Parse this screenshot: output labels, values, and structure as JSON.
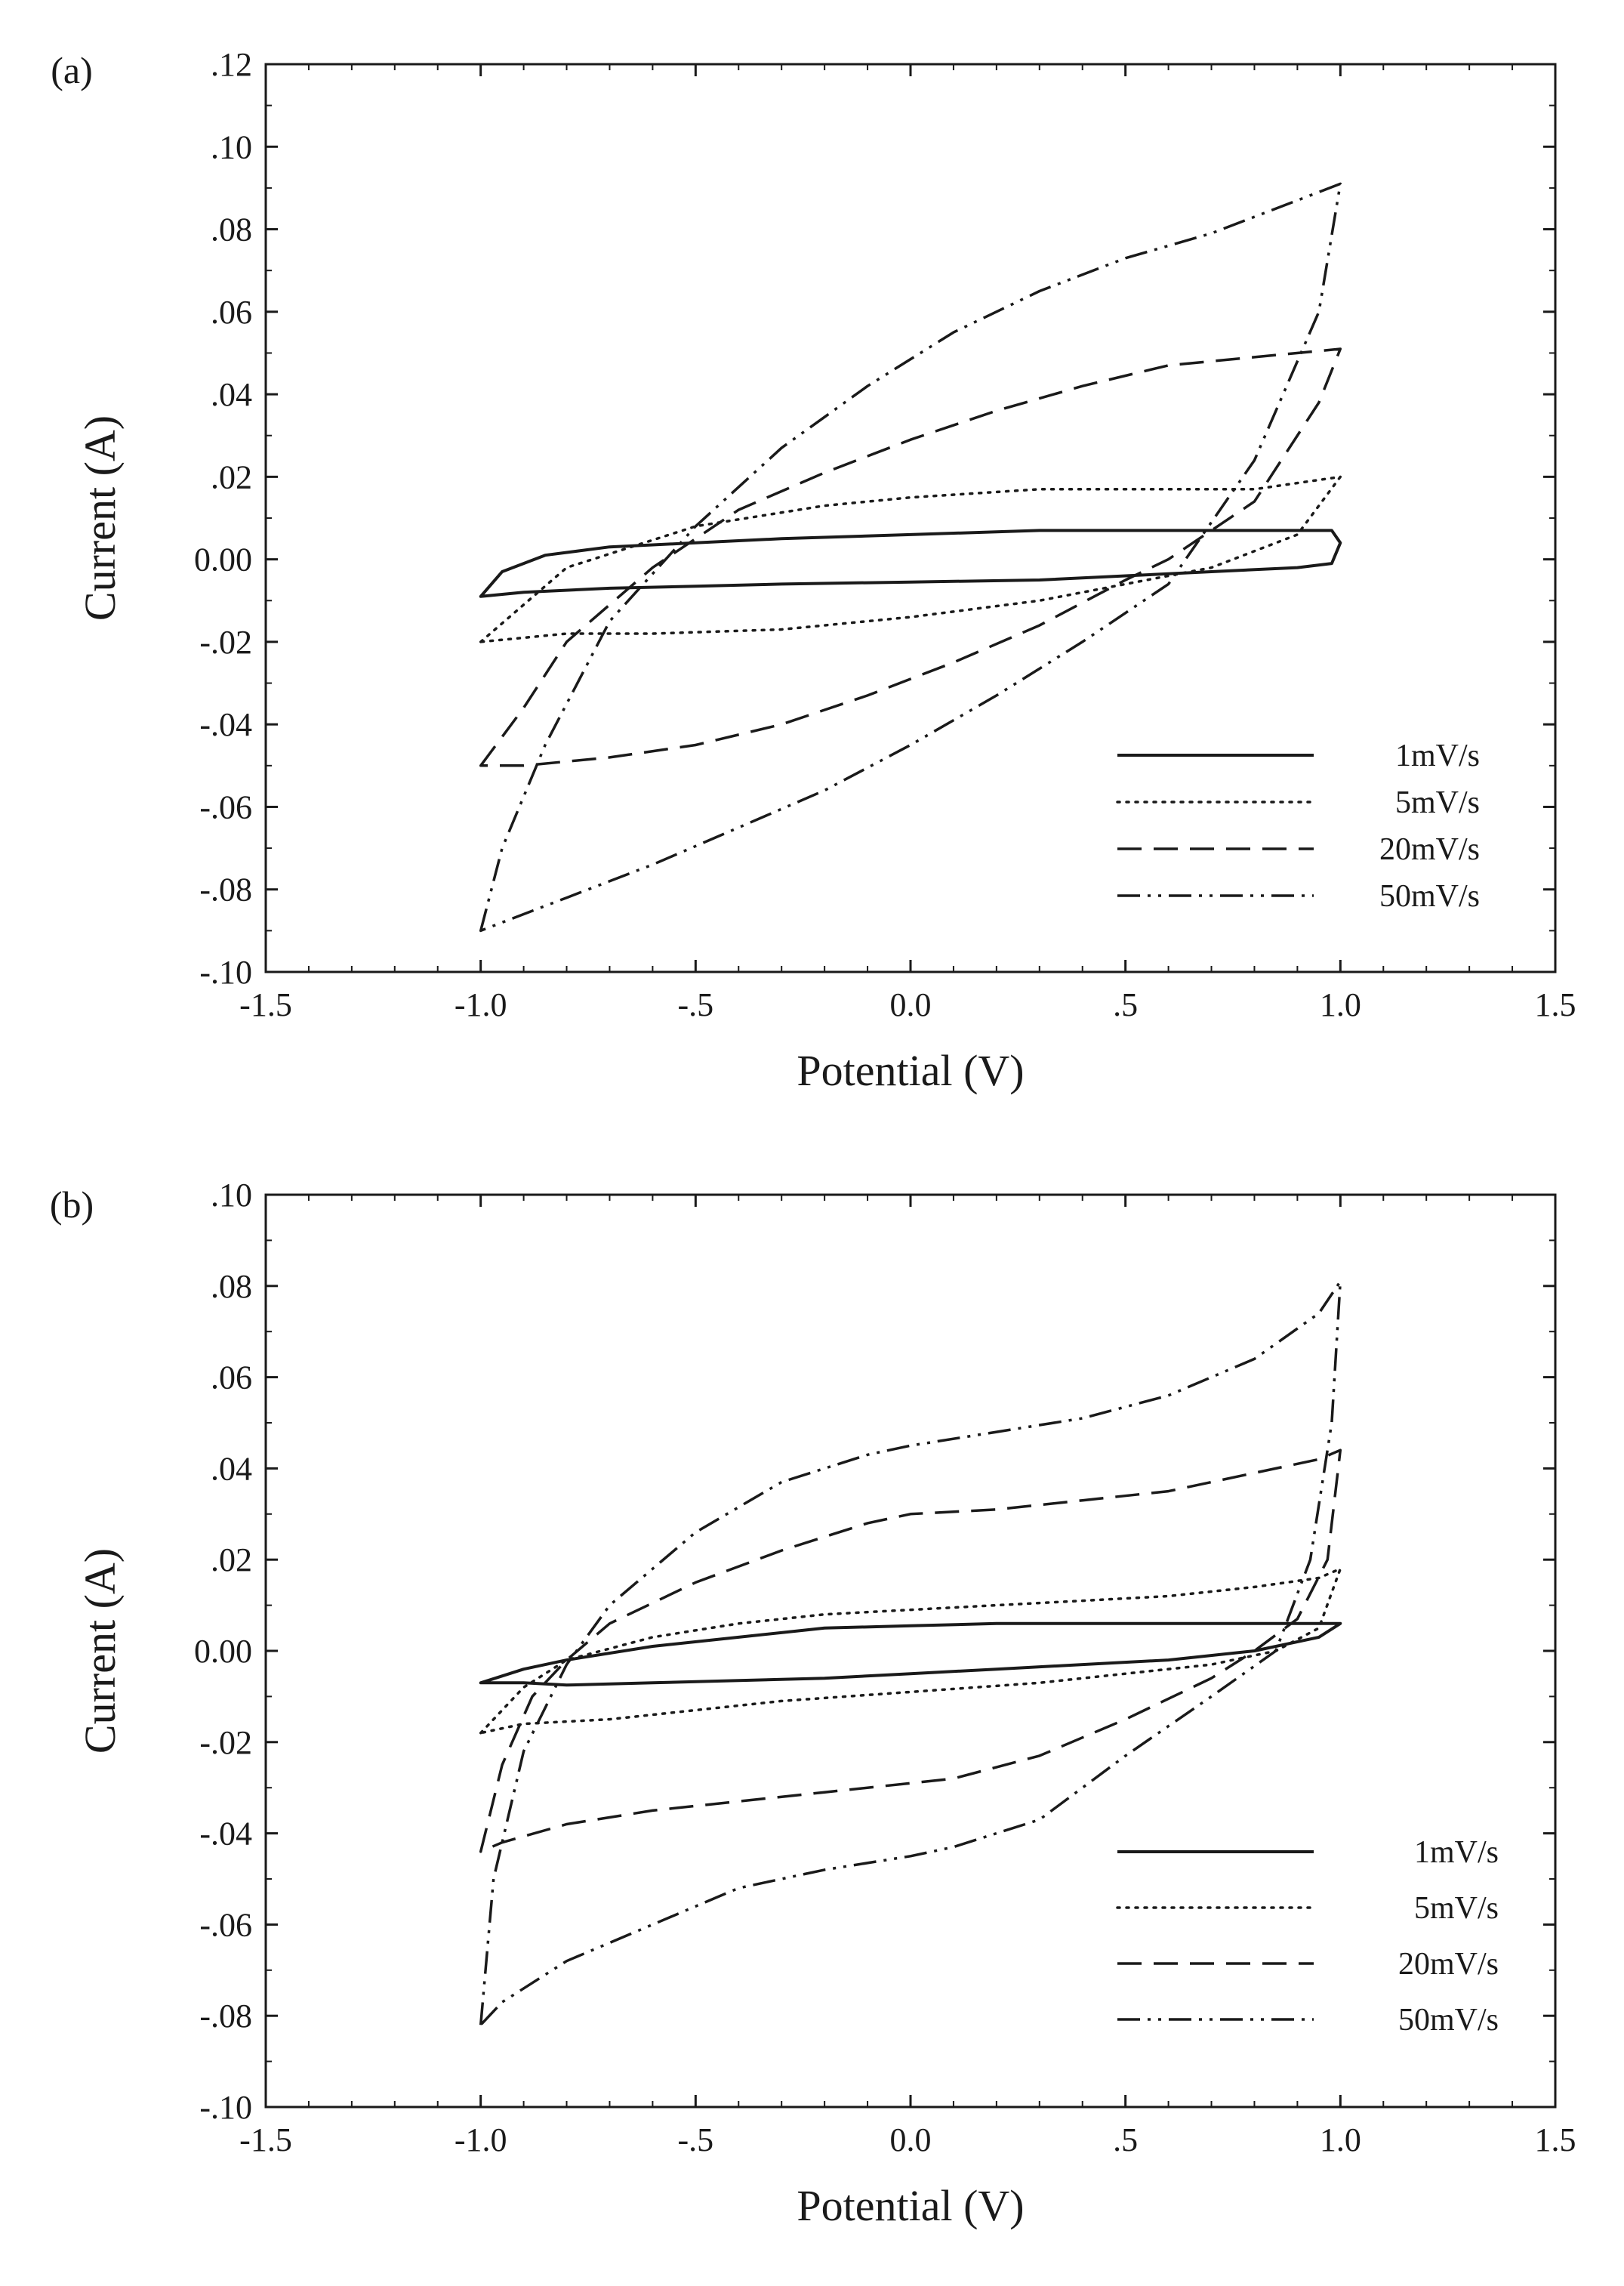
{
  "figure": {
    "panels": [
      {
        "label": "(a)",
        "title": "",
        "xlabel": "Potential (V)",
        "ylabel": "Current (A)",
        "xticks": [
          "-1.5",
          "-1.0",
          "-.5",
          "0.0",
          ".5",
          "1.0",
          "1.5"
        ],
        "yticks": [
          ".12",
          ".10",
          ".08",
          ".06",
          ".04",
          ".02",
          "0.00",
          "-.02",
          "-.04",
          "-.06",
          "-.08",
          "-.10"
        ],
        "legend": [
          "1mV/s",
          "5mV/s",
          "20mV/s",
          "50mV/s"
        ]
      },
      {
        "label": "(b)",
        "title": "",
        "xlabel": "Potential (V)",
        "ylabel": "Current (A)",
        "xticks": [
          "-1.5",
          "-1.0",
          "-.5",
          "0.0",
          ".5",
          "1.0",
          "1.5"
        ],
        "yticks": [
          ".10",
          ".08",
          ".06",
          ".04",
          ".02",
          "0.00",
          "-.02",
          "-.04",
          "-.06",
          "-.08",
          "-.10"
        ],
        "legend": [
          "1mV/s",
          "5mV/s",
          "20mV/s",
          "50mV/s"
        ]
      }
    ]
  },
  "chart_data": [
    {
      "type": "line",
      "panel": "(a)",
      "title": "",
      "xlabel": "Potential (V)",
      "ylabel": "Current (A)",
      "xlim": [
        -1.5,
        1.5
      ],
      "ylim": [
        -0.1,
        0.12
      ],
      "grid": false,
      "legend_position": "bottom-right",
      "series": [
        {
          "name": "1mV/s",
          "style": "solid",
          "x": [
            -1.0,
            -0.95,
            -0.85,
            -0.7,
            -0.5,
            -0.3,
            0.0,
            0.3,
            0.5,
            0.7,
            0.9,
            0.98,
            1.0,
            0.98,
            0.9,
            0.7,
            0.5,
            0.3,
            0.0,
            -0.3,
            -0.5,
            -0.7,
            -0.9,
            -1.0
          ],
          "y": [
            -0.009,
            -0.003,
            0.001,
            0.003,
            0.004,
            0.005,
            0.006,
            0.007,
            0.007,
            0.007,
            0.007,
            0.007,
            0.004,
            -0.001,
            -0.002,
            -0.003,
            -0.004,
            -0.005,
            -0.0055,
            -0.006,
            -0.0065,
            -0.007,
            -0.008,
            -0.009
          ]
        },
        {
          "name": "5mV/s",
          "style": "dotted",
          "x": [
            -1.0,
            -0.8,
            -0.5,
            -0.2,
            0.0,
            0.3,
            0.5,
            0.8,
            1.0,
            0.9,
            0.7,
            0.5,
            0.3,
            0.0,
            -0.3,
            -0.6,
            -0.8,
            -1.0
          ],
          "y": [
            -0.02,
            -0.002,
            0.008,
            0.013,
            0.015,
            0.017,
            0.017,
            0.017,
            0.02,
            0.006,
            -0.002,
            -0.006,
            -0.01,
            -0.014,
            -0.017,
            -0.018,
            -0.018,
            -0.02
          ]
        },
        {
          "name": "20mV/s",
          "style": "dashed",
          "x": [
            -1.0,
            -0.9,
            -0.8,
            -0.6,
            -0.4,
            -0.2,
            0.0,
            0.2,
            0.4,
            0.6,
            0.8,
            1.0,
            0.95,
            0.8,
            0.6,
            0.5,
            0.3,
            0.1,
            -0.1,
            -0.3,
            -0.5,
            -0.7,
            -0.9,
            -1.0
          ],
          "y": [
            -0.05,
            -0.036,
            -0.02,
            -0.002,
            0.012,
            0.021,
            0.029,
            0.036,
            0.042,
            0.047,
            0.049,
            0.051,
            0.038,
            0.014,
            0.0,
            -0.005,
            -0.016,
            -0.025,
            -0.033,
            -0.04,
            -0.045,
            -0.048,
            -0.05,
            -0.05
          ]
        },
        {
          "name": "50mV/s",
          "style": "dash-dot-dot",
          "x": [
            -1.0,
            -0.95,
            -0.85,
            -0.7,
            -0.5,
            -0.3,
            -0.1,
            0.1,
            0.3,
            0.5,
            0.7,
            0.9,
            1.0,
            0.95,
            0.8,
            0.6,
            0.4,
            0.2,
            0.0,
            -0.2,
            -0.4,
            -0.6,
            -0.8,
            -0.95,
            -1.0
          ],
          "y": [
            -0.09,
            -0.07,
            -0.045,
            -0.015,
            0.008,
            0.027,
            0.042,
            0.055,
            0.065,
            0.073,
            0.079,
            0.087,
            0.091,
            0.06,
            0.024,
            -0.006,
            -0.02,
            -0.033,
            -0.045,
            -0.056,
            -0.065,
            -0.074,
            -0.082,
            -0.088,
            -0.09
          ]
        }
      ]
    },
    {
      "type": "line",
      "panel": "(b)",
      "title": "",
      "xlabel": "Potential (V)",
      "ylabel": "Current (A)",
      "xlim": [
        -1.5,
        1.5
      ],
      "ylim": [
        -0.1,
        0.1
      ],
      "grid": false,
      "legend_position": "bottom-right",
      "series": [
        {
          "name": "1mV/s",
          "style": "solid",
          "x": [
            -1.0,
            -0.9,
            -0.8,
            -0.6,
            -0.4,
            -0.2,
            0.0,
            0.2,
            0.4,
            0.6,
            0.8,
            0.95,
            1.0,
            0.95,
            0.8,
            0.6,
            0.4,
            0.2,
            0.0,
            -0.2,
            -0.4,
            -0.6,
            -0.8,
            -0.9,
            -1.0
          ],
          "y": [
            -0.007,
            -0.004,
            -0.002,
            0.001,
            0.003,
            0.005,
            0.0055,
            0.006,
            0.006,
            0.006,
            0.006,
            0.006,
            0.006,
            0.003,
            0.0,
            -0.002,
            -0.003,
            -0.004,
            -0.005,
            -0.006,
            -0.0065,
            -0.007,
            -0.0075,
            -0.007,
            -0.007
          ]
        },
        {
          "name": "5mV/s",
          "style": "dotted",
          "x": [
            -1.0,
            -0.9,
            -0.8,
            -0.6,
            -0.4,
            -0.2,
            0.0,
            0.2,
            0.4,
            0.6,
            0.8,
            0.95,
            1.0,
            0.95,
            0.85,
            0.7,
            0.5,
            0.3,
            0.0,
            -0.3,
            -0.5,
            -0.7,
            -0.9,
            -1.0
          ],
          "y": [
            -0.018,
            -0.008,
            -0.002,
            0.003,
            0.006,
            0.008,
            0.009,
            0.01,
            0.011,
            0.012,
            0.014,
            0.016,
            0.018,
            0.005,
            0.0,
            -0.003,
            -0.005,
            -0.007,
            -0.009,
            -0.011,
            -0.013,
            -0.015,
            -0.016,
            -0.018
          ]
        },
        {
          "name": "20mV/s",
          "style": "dashed",
          "x": [
            -1.0,
            -0.95,
            -0.88,
            -0.8,
            -0.7,
            -0.5,
            -0.3,
            -0.1,
            0.0,
            0.2,
            0.4,
            0.6,
            0.8,
            0.95,
            1.0,
            0.97,
            0.9,
            0.8,
            0.7,
            0.5,
            0.3,
            0.1,
            0.0,
            -0.2,
            -0.4,
            -0.6,
            -0.8,
            -0.95,
            -1.0
          ],
          "y": [
            -0.044,
            -0.025,
            -0.01,
            -0.002,
            0.006,
            0.015,
            0.022,
            0.028,
            0.03,
            0.031,
            0.033,
            0.035,
            0.039,
            0.042,
            0.044,
            0.02,
            0.007,
            0.0,
            -0.006,
            -0.015,
            -0.023,
            -0.028,
            -0.029,
            -0.031,
            -0.033,
            -0.035,
            -0.038,
            -0.042,
            -0.044
          ]
        },
        {
          "name": "50mV/s",
          "style": "dash-dot-dot",
          "x": [
            -1.0,
            -0.97,
            -0.9,
            -0.8,
            -0.7,
            -0.5,
            -0.3,
            -0.1,
            0.0,
            0.2,
            0.4,
            0.6,
            0.8,
            0.95,
            1.0,
            0.98,
            0.93,
            0.85,
            0.7,
            0.5,
            0.3,
            0.1,
            0.0,
            -0.2,
            -0.4,
            -0.6,
            -0.8,
            -0.95,
            -1.0
          ],
          "y": [
            -0.082,
            -0.05,
            -0.022,
            -0.003,
            0.01,
            0.026,
            0.037,
            0.043,
            0.045,
            0.048,
            0.051,
            0.056,
            0.064,
            0.074,
            0.081,
            0.05,
            0.02,
            0.0,
            -0.01,
            -0.023,
            -0.037,
            -0.043,
            -0.045,
            -0.048,
            -0.052,
            -0.06,
            -0.068,
            -0.077,
            -0.082
          ]
        }
      ]
    }
  ]
}
